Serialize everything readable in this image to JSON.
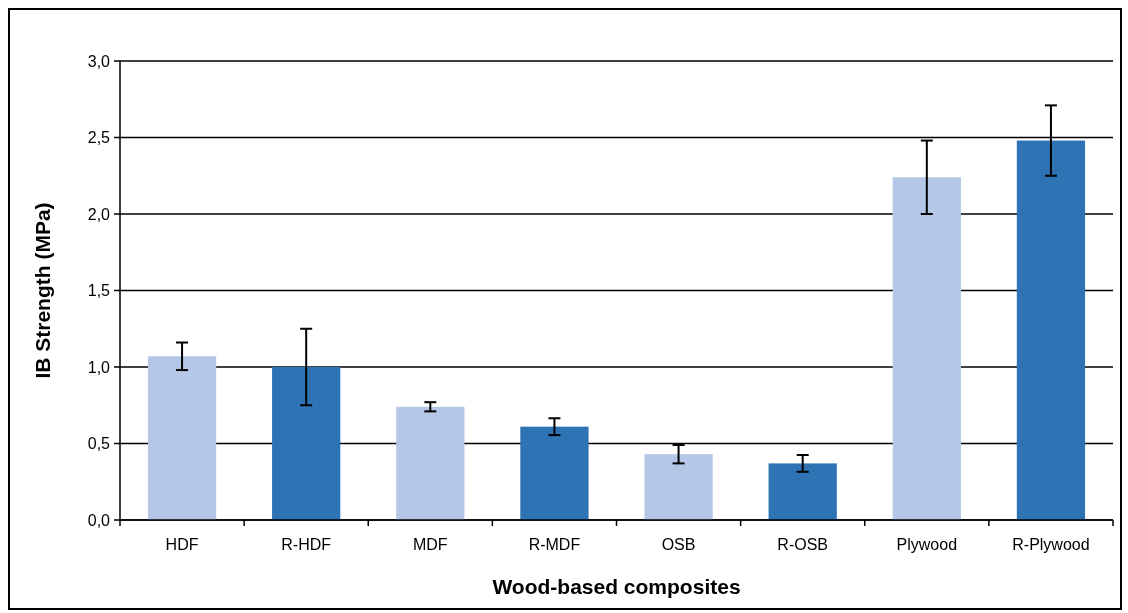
{
  "chart_data": {
    "type": "bar",
    "xlabel": "Wood-based composites",
    "ylabel": "IB Strength (MPa)",
    "categories": [
      "HDF",
      "R-HDF",
      "MDF",
      "R-MDF",
      "OSB",
      "R-OSB",
      "Plywood",
      "R-Plywood"
    ],
    "values": [
      1.07,
      1.0,
      0.74,
      0.61,
      0.43,
      0.37,
      2.24,
      2.48
    ],
    "colors": [
      "#b4c7e7",
      "#2e74b5",
      "#b4c7e7",
      "#2e74b5",
      "#b4c7e7",
      "#2e74b5",
      "#b4c7e7",
      "#2e74b5"
    ],
    "errors": [
      0.09,
      0.25,
      0.03,
      0.055,
      0.06,
      0.055,
      0.24,
      0.23
    ],
    "ylim": [
      0,
      3
    ],
    "yticks": [
      {
        "value": 0,
        "label": "0,0"
      },
      {
        "value": 0.5,
        "label": "0,5"
      },
      {
        "value": 1,
        "label": "1,0"
      },
      {
        "value": 1.5,
        "label": "1,5"
      },
      {
        "value": 2,
        "label": "2,0"
      },
      {
        "value": 2.5,
        "label": "2,5"
      },
      {
        "value": 3,
        "label": "3,0"
      }
    ],
    "grid": "y"
  }
}
